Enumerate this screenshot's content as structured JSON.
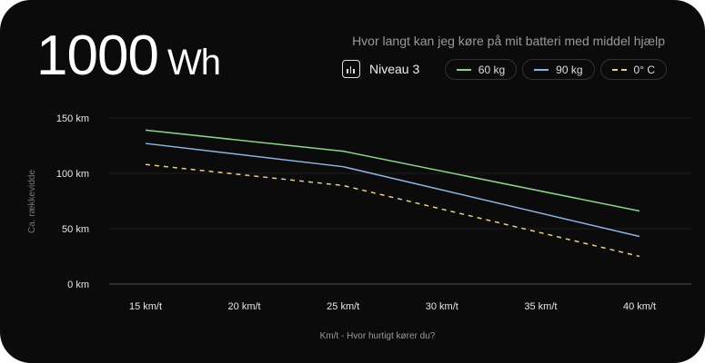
{
  "header": {
    "value": "1000",
    "unit": "Wh",
    "subtitle": "Hvor langt kan jeg køre på mit batteri med middel hjælp",
    "level": "Niveau 3"
  },
  "chart_data": {
    "type": "line",
    "title": "Hvor langt kan jeg køre på mit batteri med middel hjælp",
    "xlabel": "Km/t - Hvor hurtigt kører du?",
    "ylabel": "Ca. rækkevidde",
    "x_ticks": [
      15,
      20,
      25,
      30,
      35,
      40
    ],
    "x_tick_labels": [
      "15 km/t",
      "20 km/t",
      "25 km/t",
      "30 km/t",
      "35 km/t",
      "40 km/t"
    ],
    "y_ticks": [
      0,
      50,
      100,
      150
    ],
    "y_tick_labels": [
      "0 km",
      "50 km",
      "100 km",
      "150 km"
    ],
    "ylim": [
      0,
      150
    ],
    "xlim": [
      15,
      40
    ],
    "legend_position": "top-right",
    "series": [
      {
        "name": "60 kg",
        "color": "#8fd28a",
        "dashed": false,
        "x": [
          15,
          25,
          40
        ],
        "values": [
          139,
          120,
          66
        ]
      },
      {
        "name": "90 kg",
        "color": "#8fb6de",
        "dashed": false,
        "x": [
          15,
          25,
          40
        ],
        "values": [
          127,
          106,
          43
        ]
      },
      {
        "name": "0° C",
        "color": "#e8d08a",
        "dashed": true,
        "x": [
          15,
          25,
          40
        ],
        "values": [
          108,
          89,
          25
        ]
      }
    ]
  }
}
